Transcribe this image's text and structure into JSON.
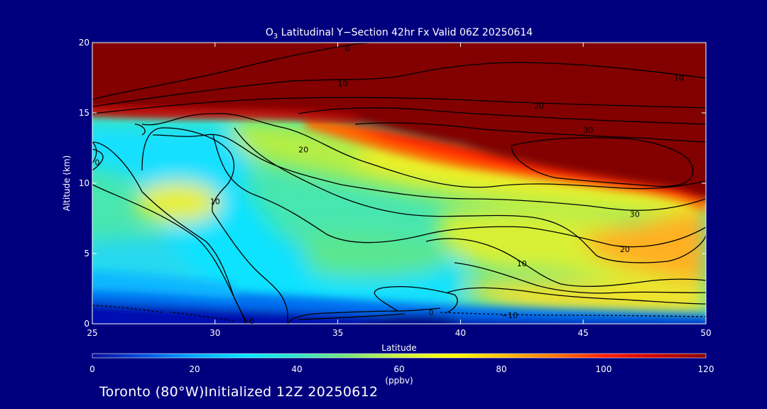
{
  "chart_data": {
    "type": "heatmap",
    "title_prefix": "O",
    "title_sub": "3",
    "title_rest": " Latitudinal Y−Section 42hr  Fx Valid 06Z 20250614",
    "xlabel": "Latitude",
    "ylabel": "Altitude (km)",
    "xlim": [
      25,
      50
    ],
    "ylim": [
      0,
      20
    ],
    "x_ticks": [
      25,
      30,
      35,
      40,
      45,
      50
    ],
    "y_ticks": [
      0,
      5,
      10,
      15,
      20
    ],
    "colorbar": {
      "range": [
        0,
        120
      ],
      "ticks": [
        0,
        20,
        40,
        60,
        80,
        100,
        120
      ],
      "unit_label": "(ppbv)",
      "colors": [
        "#0a0a9a",
        "#0050e0",
        "#00aaff",
        "#00e6ff",
        "#2ee6c8",
        "#78e678",
        "#c8f040",
        "#ffff00",
        "#ffc000",
        "#ff7800",
        "#ff2000",
        "#d00000",
        "#8b0000"
      ]
    },
    "contour_labels": [
      {
        "text": "0",
        "lat": 35.4,
        "alt": 19.6
      },
      {
        "text": "10",
        "lat": 35.2,
        "alt": 17.1
      },
      {
        "text": "10",
        "lat": 48.9,
        "alt": 17.5
      },
      {
        "text": "20",
        "lat": 43.2,
        "alt": 15.5
      },
      {
        "text": "30",
        "lat": 45.2,
        "alt": 13.8
      },
      {
        "text": "20",
        "lat": 33.6,
        "alt": 12.4
      },
      {
        "text": "0",
        "lat": 25.2,
        "alt": 11.5
      },
      {
        "text": "10",
        "lat": 30.0,
        "alt": 8.7
      },
      {
        "text": "30",
        "lat": 47.1,
        "alt": 7.8
      },
      {
        "text": "20",
        "lat": 46.7,
        "alt": 5.3
      },
      {
        "text": "10",
        "lat": 42.5,
        "alt": 4.3
      },
      {
        "text": "0",
        "lat": 31.5,
        "alt": 0.2
      },
      {
        "text": "0",
        "lat": 38.8,
        "alt": 0.8
      },
      {
        "text": "−10",
        "lat": 42.0,
        "alt": 0.6
      }
    ]
  },
  "footer": "Toronto (80°W)Initialized 12Z 20250612"
}
